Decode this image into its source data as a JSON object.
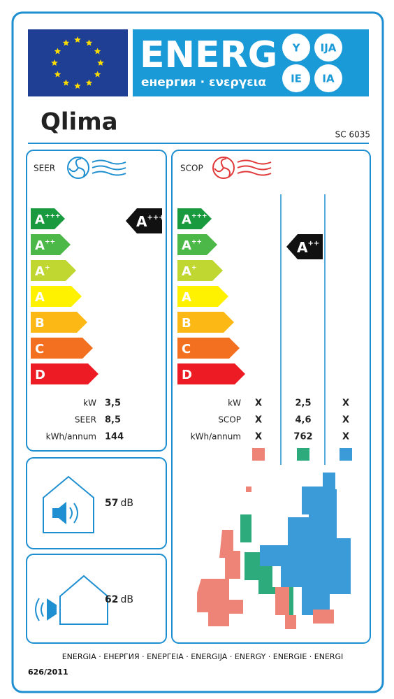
{
  "header": {
    "energ": "ENERG",
    "subtitle": "енергия · ενεργεια",
    "languages": [
      "Y",
      "IJA",
      "IE",
      "IA"
    ]
  },
  "brand": "Qlima",
  "model": "SC 6035",
  "cooling": {
    "label": "SEER",
    "classes": [
      {
        "letter": "A",
        "plus": "+++"
      },
      {
        "letter": "A",
        "plus": "++"
      },
      {
        "letter": "A",
        "plus": "+"
      },
      {
        "letter": "A",
        "plus": ""
      },
      {
        "letter": "B",
        "plus": ""
      },
      {
        "letter": "C",
        "plus": ""
      },
      {
        "letter": "D",
        "plus": ""
      }
    ],
    "rating": {
      "letter": "A",
      "plus": "+++"
    },
    "rows": [
      {
        "unit": "kW",
        "value": "3,5"
      },
      {
        "unit": "SEER",
        "value": "8,5"
      },
      {
        "unit": "kWh/annum",
        "value": "144"
      }
    ]
  },
  "heating": {
    "label": "SCOP",
    "classes": [
      {
        "letter": "A",
        "plus": "+++"
      },
      {
        "letter": "A",
        "plus": "++"
      },
      {
        "letter": "A",
        "plus": "+"
      },
      {
        "letter": "A",
        "plus": ""
      },
      {
        "letter": "B",
        "plus": ""
      },
      {
        "letter": "C",
        "plus": ""
      },
      {
        "letter": "D",
        "plus": ""
      }
    ],
    "rating": {
      "letter": "A",
      "plus": "++"
    },
    "rows": [
      {
        "unit": "kW",
        "values": [
          "X",
          "2,5",
          "X"
        ]
      },
      {
        "unit": "SCOP",
        "values": [
          "X",
          "4,6",
          "X"
        ]
      },
      {
        "unit": "kWh/annum",
        "values": [
          "X",
          "762",
          "X"
        ]
      }
    ]
  },
  "noise_indoor": {
    "value": "57",
    "unit": "dB"
  },
  "noise_outdoor": {
    "value": "62",
    "unit": "dB"
  },
  "footer": {
    "languages": "ENERGIA · ЕНЕРГИЯ · ΕΝΕΡΓΕΙΑ · ENERGIJA · ENERGY · ENERGIE · ENERGI",
    "regulation": "626/2011"
  }
}
